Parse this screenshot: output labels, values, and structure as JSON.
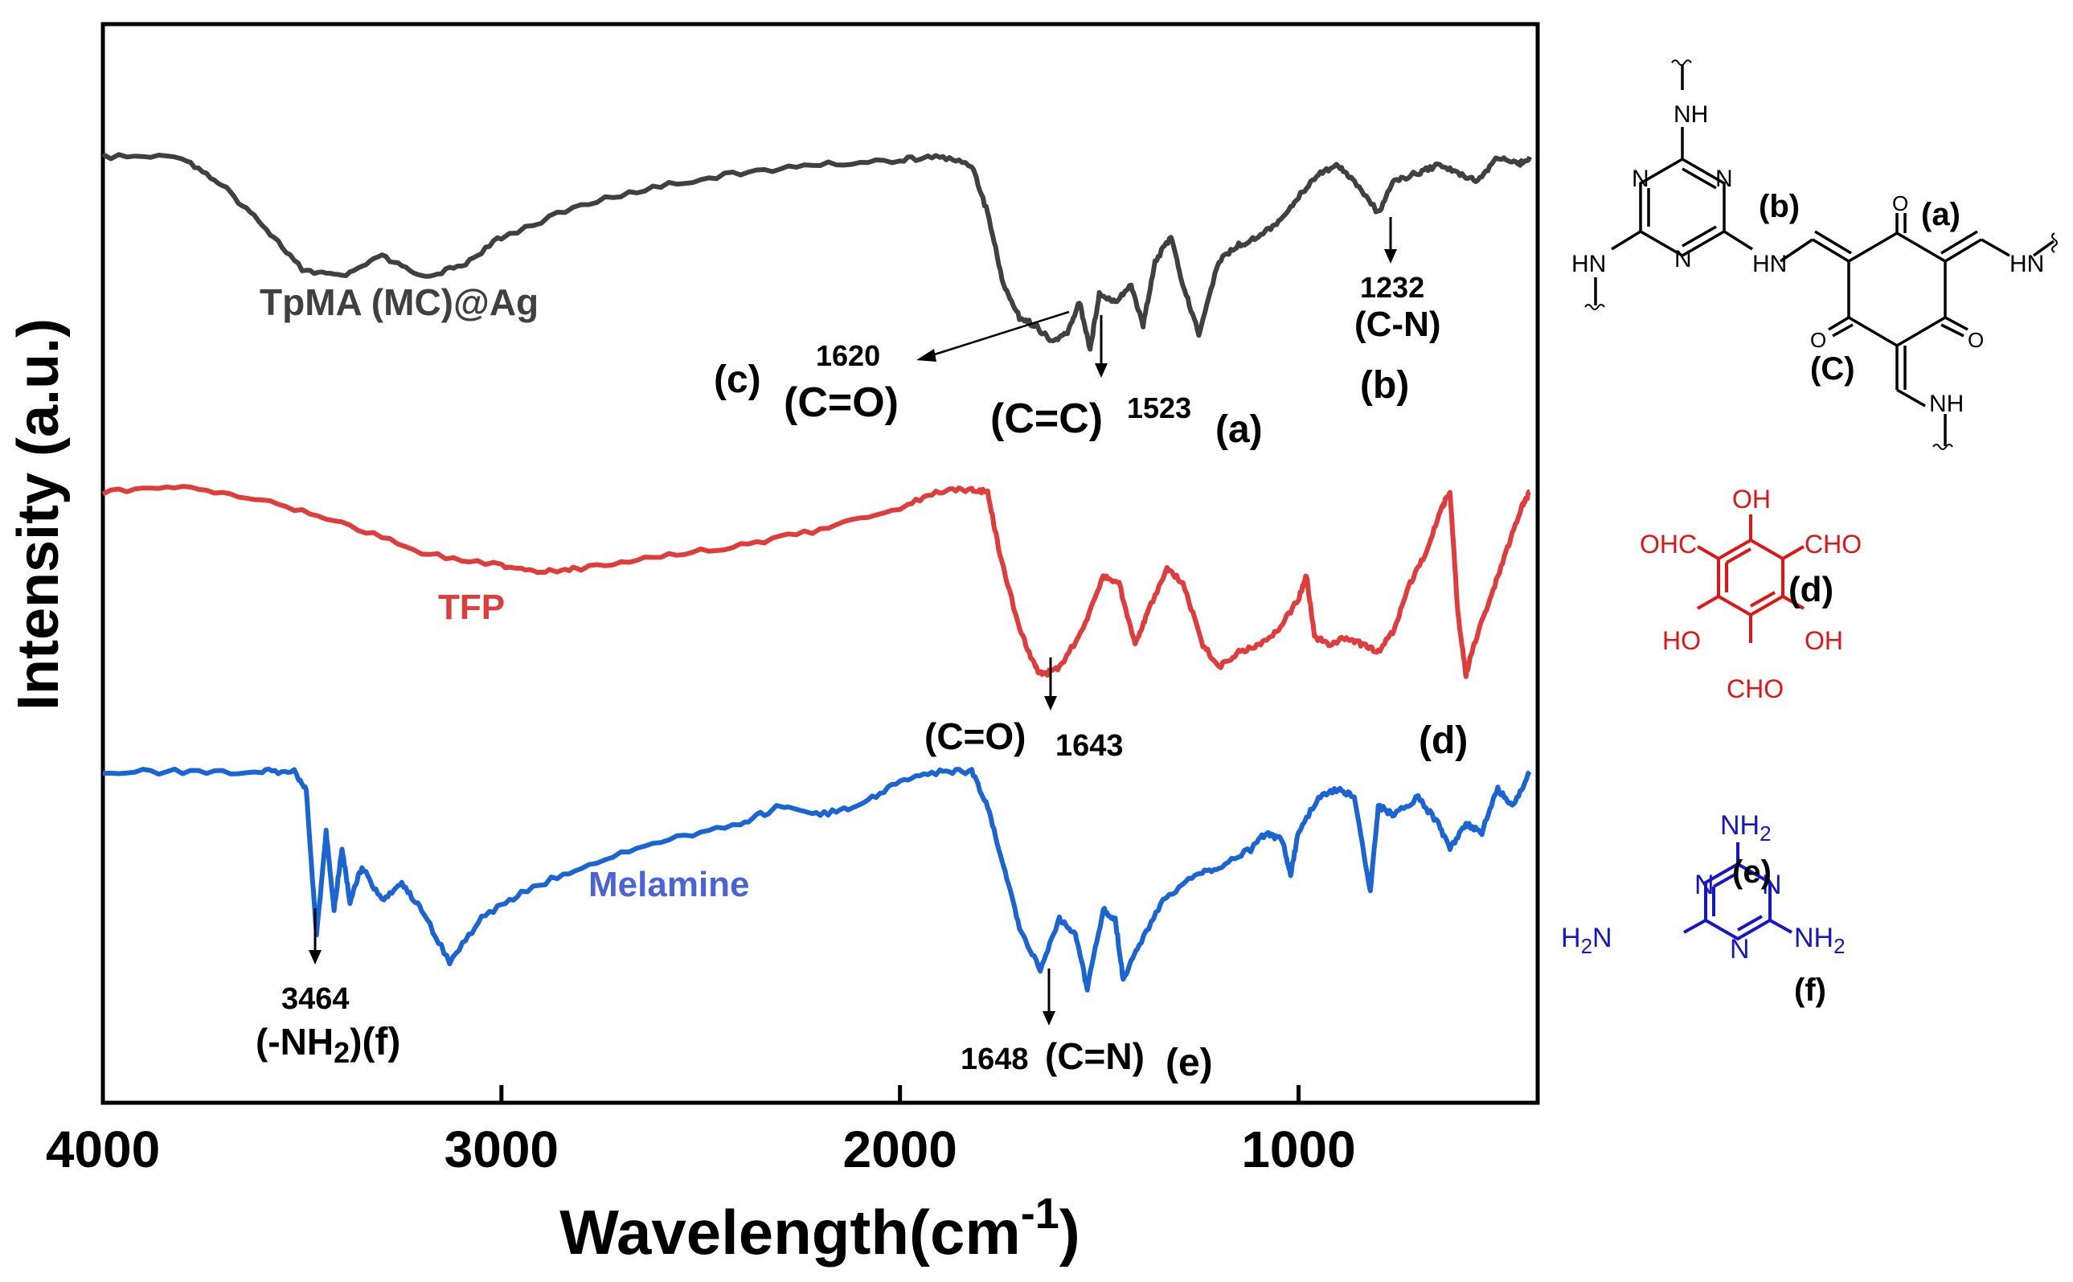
{
  "chart_data": {
    "type": "line",
    "title": "",
    "xlabel": "Wavelength(cm",
    "xlabel_sup": "-1",
    "xlabel_close": ")",
    "ylabel": "Intensity (a.u.)",
    "xlim": [
      4000,
      400
    ],
    "x_reversed": true,
    "yticks_shown": false,
    "grid": false,
    "xticks": [
      4000,
      3000,
      2000,
      1000
    ],
    "xtick_labels": [
      "4000",
      "3000",
      "2000",
      "1000"
    ],
    "series": [
      {
        "name": "TpMA (MC)@Ag",
        "color": "#404040",
        "baseline_points": [
          [
            4000,
            0.0
          ],
          [
            3800,
            0.0
          ],
          [
            3700,
            0.18
          ],
          [
            3600,
            0.42
          ],
          [
            3500,
            0.7
          ],
          [
            3400,
            0.75
          ],
          [
            3300,
            0.62
          ],
          [
            3200,
            0.75
          ],
          [
            3100,
            0.68
          ],
          [
            3000,
            0.5
          ],
          [
            2800,
            0.3
          ],
          [
            2600,
            0.18
          ],
          [
            2400,
            0.1
          ],
          [
            2200,
            0.05
          ],
          [
            2000,
            0.02
          ],
          [
            1900,
            0.0
          ],
          [
            1820,
            0.05
          ],
          [
            1780,
            0.35
          ],
          [
            1740,
            0.8
          ],
          [
            1700,
            1.0
          ],
          [
            1660,
            1.05
          ],
          [
            1620,
            1.15
          ],
          [
            1580,
            1.1
          ],
          [
            1550,
            0.9
          ],
          [
            1523,
            1.2
          ],
          [
            1500,
            0.85
          ],
          [
            1460,
            0.9
          ],
          [
            1420,
            0.8
          ],
          [
            1390,
            1.05
          ],
          [
            1360,
            0.65
          ],
          [
            1320,
            0.5
          ],
          [
            1290,
            0.8
          ],
          [
            1250,
            1.1
          ],
          [
            1200,
            0.65
          ],
          [
            1150,
            0.55
          ],
          [
            1100,
            0.5
          ],
          [
            1050,
            0.4
          ],
          [
            1000,
            0.25
          ],
          [
            950,
            0.1
          ],
          [
            900,
            0.05
          ],
          [
            860,
            0.15
          ],
          [
            800,
            0.35
          ],
          [
            760,
            0.15
          ],
          [
            700,
            0.1
          ],
          [
            650,
            0.05
          ],
          [
            600,
            0.1
          ],
          [
            550,
            0.15
          ],
          [
            500,
            0.0
          ],
          [
            450,
            0.05
          ],
          [
            420,
            0.0
          ]
        ],
        "annotations": [
          {
            "wavenumber": 1620,
            "value": "1620",
            "group": "(C=O)",
            "tag": "(c)"
          },
          {
            "wavenumber": 1523,
            "value": "1523",
            "group": "(C=C)",
            "tag": "(a)"
          },
          {
            "wavenumber": 1232,
            "value": "1232",
            "group": "(C-N)",
            "tag": "(b)"
          }
        ]
      },
      {
        "name": "TFP",
        "color": "#e03c3c",
        "baseline_points": [
          [
            4000,
            0.0
          ],
          [
            3800,
            -0.03
          ],
          [
            3600,
            0.05
          ],
          [
            3400,
            0.2
          ],
          [
            3200,
            0.4
          ],
          [
            3000,
            0.48
          ],
          [
            2900,
            0.52
          ],
          [
            2800,
            0.5
          ],
          [
            2600,
            0.42
          ],
          [
            2400,
            0.35
          ],
          [
            2200,
            0.25
          ],
          [
            2000,
            0.1
          ],
          [
            1900,
            0.0
          ],
          [
            1820,
            -0.02
          ],
          [
            1780,
            0.0
          ],
          [
            1750,
            0.4
          ],
          [
            1700,
            0.9
          ],
          [
            1660,
            1.15
          ],
          [
            1643,
            1.2
          ],
          [
            1600,
            1.15
          ],
          [
            1540,
            0.9
          ],
          [
            1490,
            0.55
          ],
          [
            1450,
            0.6
          ],
          [
            1410,
            1.0
          ],
          [
            1380,
            0.8
          ],
          [
            1330,
            0.5
          ],
          [
            1290,
            0.6
          ],
          [
            1240,
            1.0
          ],
          [
            1200,
            1.15
          ],
          [
            1150,
            1.05
          ],
          [
            1100,
            1.0
          ],
          [
            1050,
            0.9
          ],
          [
            1000,
            0.7
          ],
          [
            980,
            0.55
          ],
          [
            960,
            0.95
          ],
          [
            920,
            1.0
          ],
          [
            880,
            0.95
          ],
          [
            840,
            1.0
          ],
          [
            800,
            1.05
          ],
          [
            760,
            0.9
          ],
          [
            720,
            0.6
          ],
          [
            680,
            0.4
          ],
          [
            640,
            0.1
          ],
          [
            620,
            0.0
          ],
          [
            600,
            0.8
          ],
          [
            580,
            1.2
          ],
          [
            560,
            1.0
          ],
          [
            520,
            0.7
          ],
          [
            480,
            0.4
          ],
          [
            440,
            0.1
          ],
          [
            420,
            0.0
          ]
        ],
        "annotations": [
          {
            "wavenumber": 1643,
            "value": "1643",
            "group": "(C=O)",
            "tag": ""
          }
        ]
      },
      {
        "name": "Melamine",
        "color": "#1a64d4",
        "baseline_points": [
          [
            4000,
            0.0
          ],
          [
            3800,
            0.0
          ],
          [
            3600,
            0.0
          ],
          [
            3520,
            0.0
          ],
          [
            3490,
            0.1
          ],
          [
            3464,
            0.95
          ],
          [
            3440,
            0.35
          ],
          [
            3420,
            0.8
          ],
          [
            3400,
            0.45
          ],
          [
            3380,
            0.75
          ],
          [
            3350,
            0.55
          ],
          [
            3300,
            0.75
          ],
          [
            3250,
            0.65
          ],
          [
            3200,
            0.8
          ],
          [
            3130,
            1.1
          ],
          [
            3050,
            0.85
          ],
          [
            2950,
            0.7
          ],
          [
            2800,
            0.55
          ],
          [
            2600,
            0.4
          ],
          [
            2400,
            0.3
          ],
          [
            2300,
            0.2
          ],
          [
            2200,
            0.25
          ],
          [
            2100,
            0.2
          ],
          [
            2000,
            0.05
          ],
          [
            1900,
            0.0
          ],
          [
            1820,
            0.0
          ],
          [
            1780,
            0.2
          ],
          [
            1740,
            0.55
          ],
          [
            1700,
            0.9
          ],
          [
            1648,
            1.15
          ],
          [
            1600,
            0.85
          ],
          [
            1560,
            0.95
          ],
          [
            1530,
            1.25
          ],
          [
            1490,
            0.8
          ],
          [
            1460,
            0.85
          ],
          [
            1440,
            1.2
          ],
          [
            1400,
            1.0
          ],
          [
            1340,
            0.75
          ],
          [
            1260,
            0.6
          ],
          [
            1200,
            0.55
          ],
          [
            1120,
            0.45
          ],
          [
            1080,
            0.35
          ],
          [
            1040,
            0.4
          ],
          [
            1020,
            0.6
          ],
          [
            1000,
            0.35
          ],
          [
            950,
            0.15
          ],
          [
            900,
            0.1
          ],
          [
            860,
            0.15
          ],
          [
            820,
            0.7
          ],
          [
            800,
            0.2
          ],
          [
            760,
            0.25
          ],
          [
            700,
            0.15
          ],
          [
            650,
            0.3
          ],
          [
            620,
            0.45
          ],
          [
            580,
            0.3
          ],
          [
            540,
            0.35
          ],
          [
            500,
            0.1
          ],
          [
            460,
            0.2
          ],
          [
            420,
            0.0
          ]
        ],
        "annotations": [
          {
            "wavenumber": 3464,
            "value": "3464",
            "group": "(-NH",
            "group_sub": "2",
            "group_close": ")",
            "tag": "(f)"
          },
          {
            "wavenumber": 1648,
            "value": "1648",
            "group": "(C=N)",
            "tag": "(e)"
          }
        ]
      }
    ]
  },
  "legend_labels": {
    "tpma": "TpMA (MC)@Ag",
    "tfp": "TFP",
    "melamine": "Melamine"
  },
  "structure_labels": {
    "tpma_nh_top": "NH",
    "tpma_hn_left": "HN",
    "tpma_hn_mid": "HN",
    "tpma_nh_right": "HN",
    "tpma_nh_bottom": "NH",
    "tpma_ring_n": "N",
    "tpma_o": "O",
    "tpma_tag_b": "(b)",
    "tpma_tag_a": "(a)",
    "tpma_tag_c": "(C)",
    "tfp_oh_top": "OH",
    "tfp_ohc_left": "OHC",
    "tfp_cho_right": "CHO",
    "tfp_ho_left": "HO",
    "tfp_oh_right": "OH",
    "tfp_cho_bottom": "CHO",
    "tfp_tag": "(d)",
    "tfp_tag_chart": "(d)",
    "mel_nh2": "NH",
    "mel_h2n": "H",
    "mel_h2n_n": "N",
    "mel_sub2": "2",
    "mel_ring_n": "N",
    "mel_tag_e": "(e)",
    "mel_tag_f": "(f)"
  }
}
